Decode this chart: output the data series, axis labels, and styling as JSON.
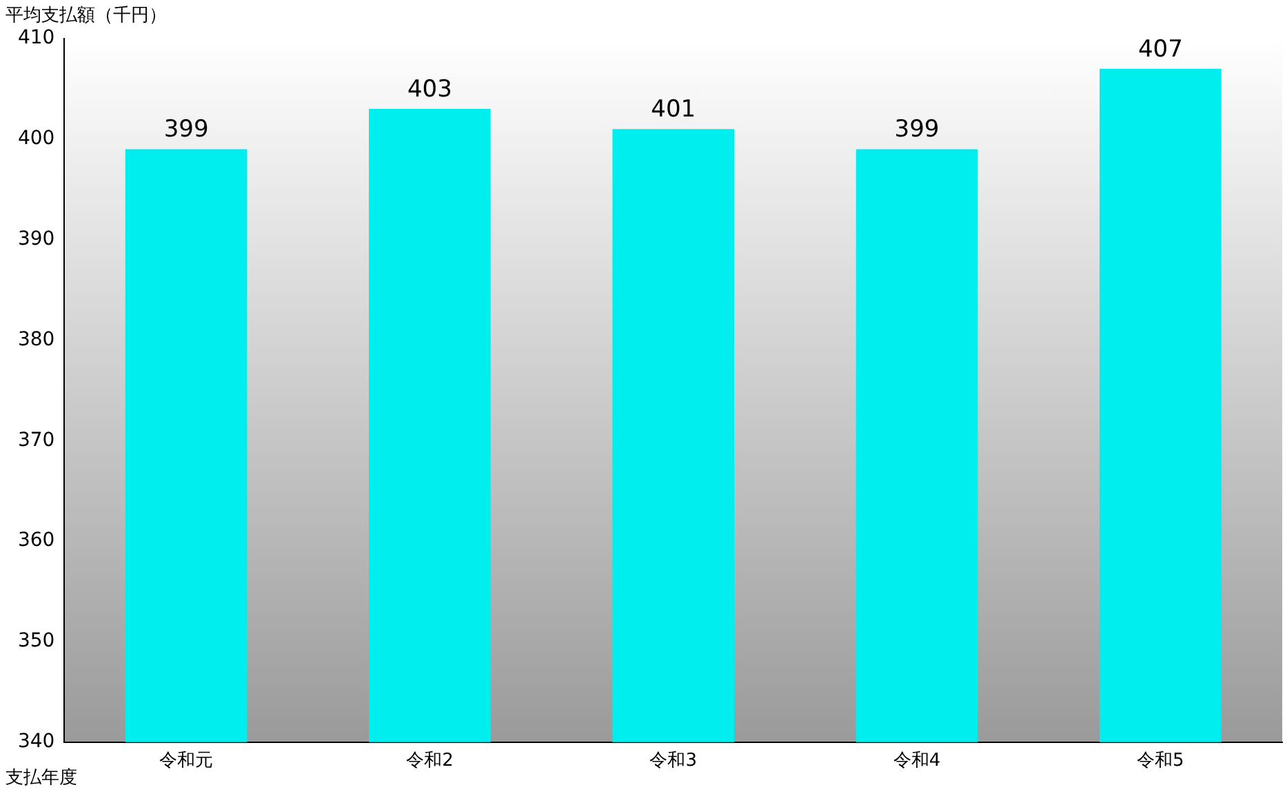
{
  "chart_data": {
    "type": "bar",
    "ylabel": "平均支払額（千円）",
    "xlabel": "支払年度",
    "categories": [
      "令和元",
      "令和2",
      "令和3",
      "令和4",
      "令和5"
    ],
    "values": [
      399,
      403,
      401,
      399,
      407
    ],
    "color": "#00eeee",
    "ylim": [
      340,
      410
    ],
    "yticks": [
      340,
      350,
      360,
      370,
      380,
      390,
      400,
      410
    ],
    "grid": false,
    "data_labels": true
  }
}
